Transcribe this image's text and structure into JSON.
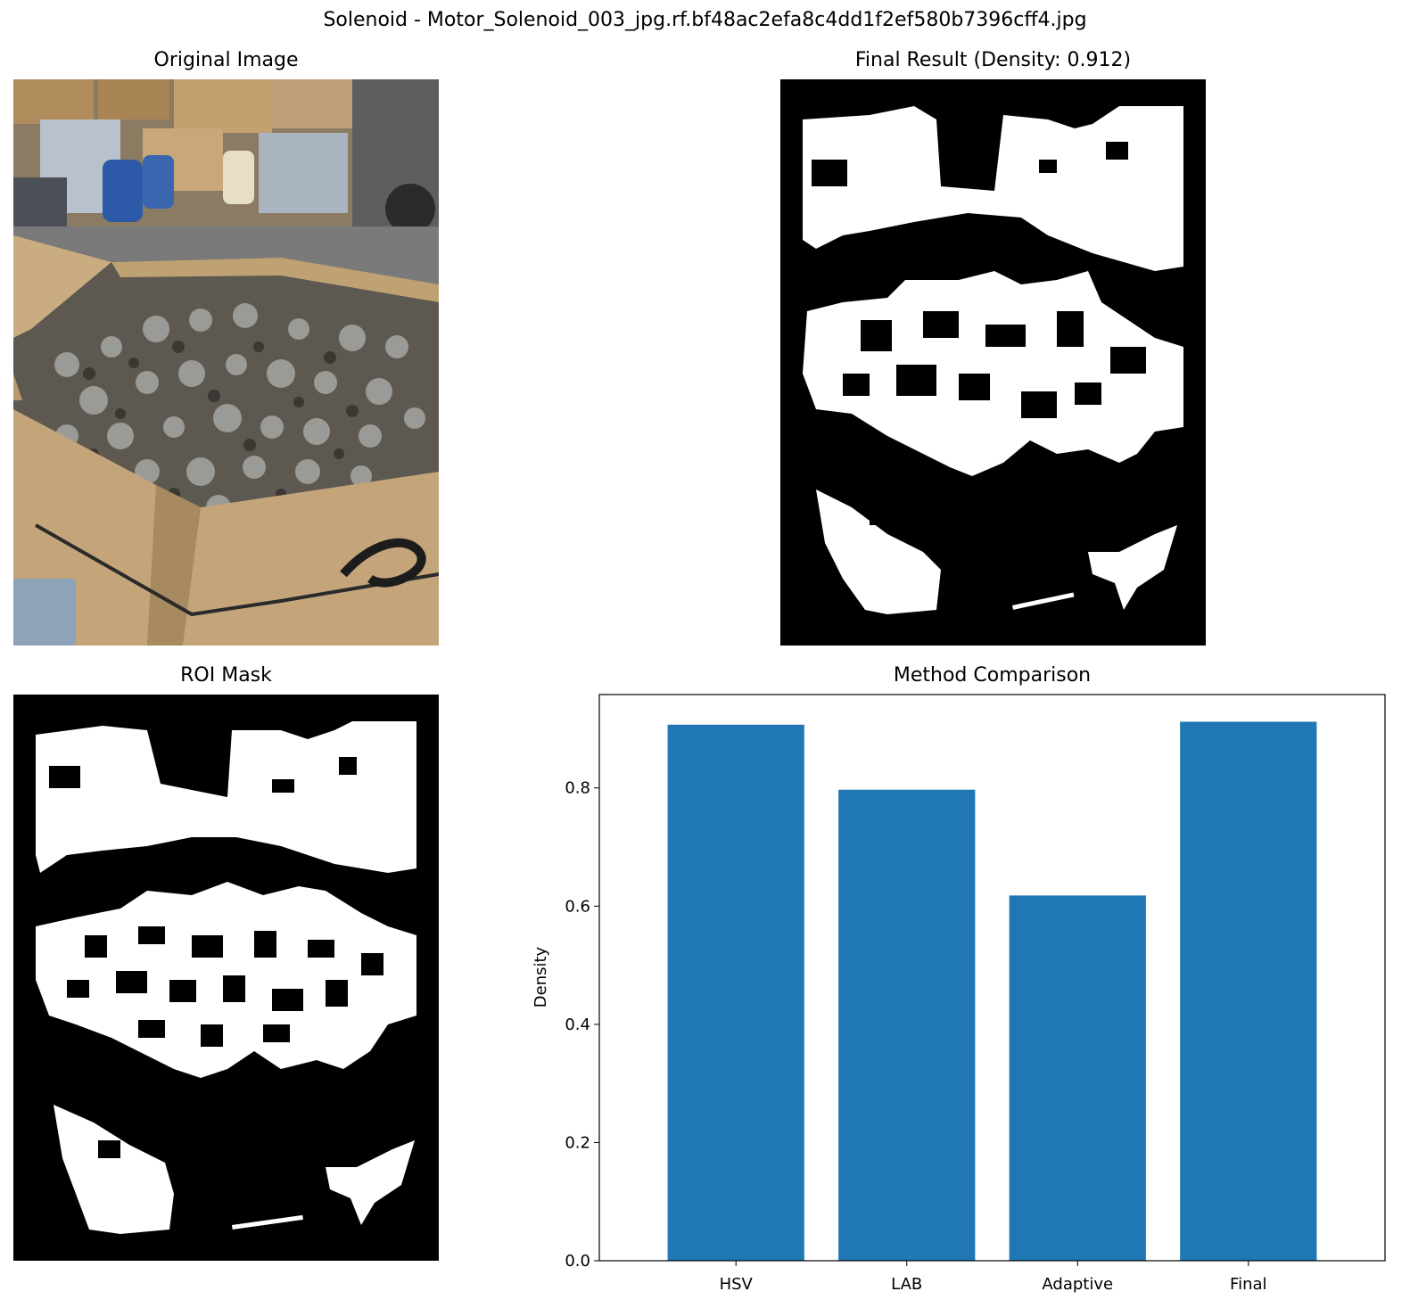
{
  "figure": {
    "suptitle": "Solenoid - Motor_Solenoid_003_jpg.rf.bf48ac2efa8c4dd1f2ef580b7396cff4.jpg"
  },
  "panels": {
    "original": {
      "title": "Original Image"
    },
    "final": {
      "title": "Final Result (Density: 0.912)"
    },
    "roi": {
      "title": "ROI Mask"
    },
    "comparison": {
      "title": "Method Comparison"
    }
  },
  "colors": {
    "bar": "#1f77b4",
    "mask_fg": "#ffffff",
    "mask_bg": "#000000"
  },
  "chart_data": {
    "type": "bar",
    "title": "Method Comparison",
    "xlabel": "",
    "ylabel": "Density",
    "categories": [
      "HSV",
      "LAB",
      "Adaptive",
      "Final"
    ],
    "values": [
      0.907,
      0.797,
      0.618,
      0.912
    ],
    "ylim": [
      0,
      0.958
    ],
    "yticks": [
      "0.0",
      "0.2",
      "0.4",
      "0.6",
      "0.8"
    ],
    "grid": false,
    "legend": "none"
  }
}
